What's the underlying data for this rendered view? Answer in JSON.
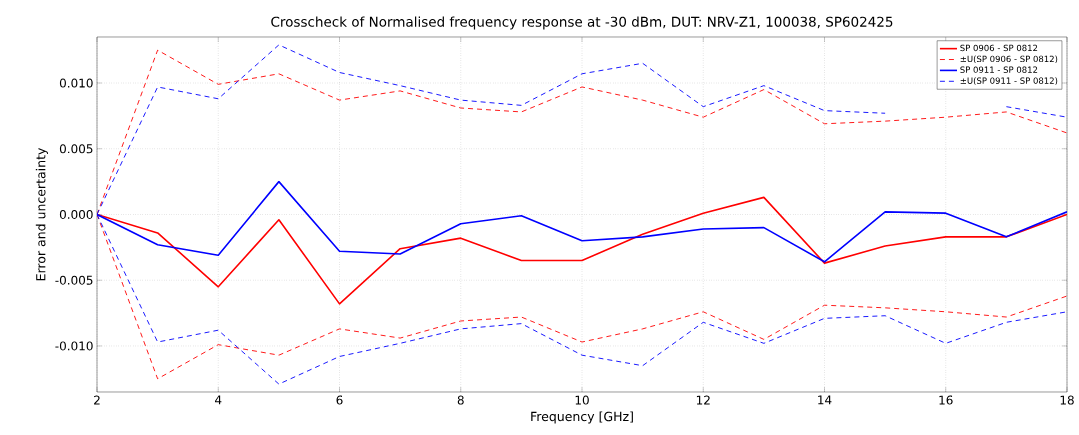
{
  "chart_data": {
    "type": "line",
    "title": "Crosscheck of Normalised frequency response at -30 dBm, DUT: NRV-Z1, 100038, SP602425",
    "xlabel": "Frequency [GHz]",
    "ylabel": "Error and uncertainty",
    "x": [
      2,
      3,
      4,
      5,
      6,
      7,
      8,
      9,
      10,
      11,
      12,
      13,
      14,
      15,
      16,
      17,
      18
    ],
    "series": [
      {
        "name": "SP 0906 - SP 0812",
        "color": "#ff0000",
        "line_style": "solid",
        "values": [
          0,
          -0.0014,
          -0.0055,
          -0.0004,
          -0.0068,
          -0.0026,
          -0.0018,
          -0.0035,
          -0.0035,
          -0.0015,
          0.0001,
          0.0013,
          -0.0037,
          -0.0024,
          -0.0017,
          -0.0017,
          0
        ]
      },
      {
        "name": "±U(SP 0906 - SP 0812)",
        "color": "#ff0000",
        "line_style": "dashed",
        "values": [
          0,
          0.0125,
          0.0099,
          0.0107,
          0.0087,
          0.0094,
          0.0081,
          0.0078,
          0.0097,
          0.0087,
          0.0074,
          0.0095,
          0.0069,
          0.0071,
          0.0074,
          0.0078,
          0.0062
        ]
      },
      {
        "color": "#ff0000",
        "line_style": "dashed",
        "values": [
          0,
          -0.0125,
          -0.0099,
          -0.0107,
          -0.0087,
          -0.0094,
          -0.0081,
          -0.0078,
          -0.0097,
          -0.0087,
          -0.0074,
          -0.0095,
          -0.0069,
          -0.0071,
          -0.0074,
          -0.0078,
          -0.0062
        ]
      },
      {
        "name": "SP 0911 - SP 0812",
        "color": "#0000ff",
        "line_style": "solid",
        "values": [
          0,
          -0.0023,
          -0.0031,
          0.0025,
          -0.0028,
          -0.003,
          -0.0007,
          -0.0001,
          -0.002,
          -0.0017,
          -0.0011,
          -0.001,
          -0.0036,
          0.0002,
          0.0001,
          -0.0017,
          0.0002
        ]
      },
      {
        "name": "±U(SP 0911 - SP 0812)",
        "color": "#0000ff",
        "line_style": "dashed",
        "values": [
          0,
          0.0097,
          0.0088,
          0.0129,
          0.0108,
          0.0098,
          0.0087,
          0.0083,
          0.0107,
          0.0115,
          0.0082,
          0.0098,
          0.0079,
          0.0077,
          null,
          0.0082,
          0.0074
        ]
      },
      {
        "color": "#0000ff",
        "line_style": "dashed",
        "values": [
          0,
          -0.0097,
          -0.0088,
          -0.0129,
          -0.0108,
          -0.0098,
          -0.0087,
          -0.0083,
          -0.0107,
          -0.0115,
          -0.0082,
          -0.0098,
          -0.0079,
          -0.0077,
          -0.0098,
          -0.0082,
          -0.0074
        ]
      }
    ],
    "xlim": [
      2,
      18
    ],
    "xticks": [
      2,
      4,
      6,
      8,
      10,
      12,
      14,
      16,
      18
    ],
    "ylim": [
      -0.0135,
      0.0135
    ],
    "yticks": [
      {
        "value": -0.01,
        "label": "-0.010"
      },
      {
        "value": -0.005,
        "label": "-0.005"
      },
      {
        "value": 0,
        "label": "0.000"
      },
      {
        "value": 0.005,
        "label": "0.005"
      },
      {
        "value": 0.01,
        "label": "0.010"
      }
    ],
    "grid": true,
    "legend": "top right",
    "marker": "none"
  }
}
